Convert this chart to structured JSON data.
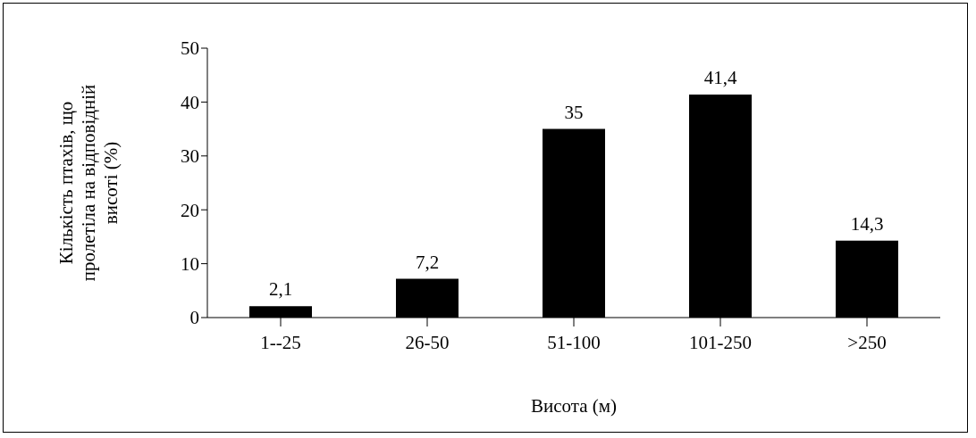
{
  "chart_data": {
    "type": "bar",
    "categories": [
      "1--25",
      "26-50",
      "51-100",
      "101-250",
      ">250"
    ],
    "values": [
      2.1,
      7.2,
      35,
      41.4,
      14.3
    ],
    "value_labels": [
      "2,1",
      "7,2",
      "35",
      "41,4",
      "14,3"
    ],
    "color": "#000000",
    "xlabel": "Висота (м)",
    "ylabel": "Кількість птахів, що пролетіла на відповідній висоті (%)",
    "ylim": [
      0,
      50
    ],
    "yticks": [
      0,
      10,
      20,
      30,
      40,
      50
    ],
    "grid": false,
    "legend": false
  }
}
